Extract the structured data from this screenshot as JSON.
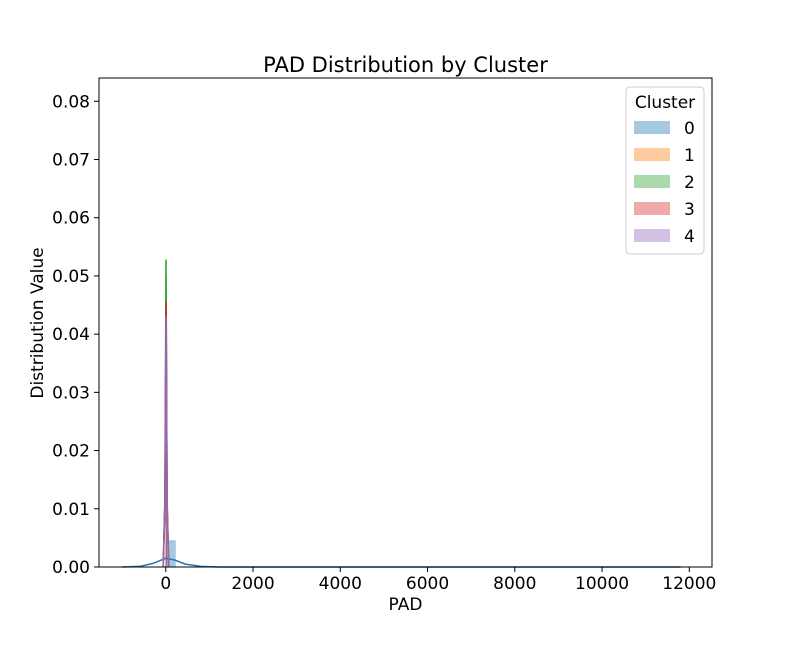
{
  "chart_data": {
    "type": "histogram",
    "title": "PAD Distribution by Cluster",
    "xlabel": "PAD",
    "ylabel": "Distribution Value",
    "xlim": [
      -1530,
      12520
    ],
    "ylim": [
      0.0,
      0.084
    ],
    "x_ticks": [
      0,
      2000,
      4000,
      6000,
      8000,
      10000,
      12000
    ],
    "x_tick_labels": [
      "0",
      "2000",
      "4000",
      "6000",
      "8000",
      "10000",
      "12000"
    ],
    "y_ticks": [
      0.0,
      0.01,
      0.02,
      0.03,
      0.04,
      0.05,
      0.06,
      0.07,
      0.08
    ],
    "y_tick_labels": [
      "0.00",
      "0.01",
      "0.02",
      "0.03",
      "0.04",
      "0.05",
      "0.06",
      "0.07",
      "0.08"
    ],
    "grid": false,
    "legend": {
      "title": "Cluster",
      "placement": "top-right",
      "entries": [
        "0",
        "1",
        "2",
        "3",
        "4"
      ]
    },
    "series": [
      {
        "name": "0",
        "color": "#1f77b4",
        "bars": [
          {
            "x0": 0,
            "x1": 230,
            "height": 0.0046
          }
        ],
        "kde": [
          [
            -1000,
            0.0
          ],
          [
            -600,
            0.0001
          ],
          [
            -300,
            0.0006
          ],
          [
            0,
            0.0015
          ],
          [
            200,
            0.0012
          ],
          [
            450,
            0.0005
          ],
          [
            800,
            0.0001
          ],
          [
            1200,
            0.0
          ],
          [
            11800,
            0.0
          ]
        ]
      },
      {
        "name": "1",
        "color": "#ff7f0e",
        "bars": [
          {
            "x0": -5,
            "x1": 20,
            "height": 0.04
          }
        ],
        "kde": [
          [
            -60,
            0.0
          ],
          [
            -20,
            0.01
          ],
          [
            8,
            0.043
          ],
          [
            30,
            0.01
          ],
          [
            70,
            0.0
          ]
        ]
      },
      {
        "name": "2",
        "color": "#2ca02c",
        "bars": [
          {
            "x0": -5,
            "x1": 20,
            "height": 0.05
          }
        ],
        "kde": [
          [
            -55,
            0.0
          ],
          [
            -20,
            0.012
          ],
          [
            6,
            0.0528
          ],
          [
            30,
            0.012
          ],
          [
            65,
            0.0
          ]
        ]
      },
      {
        "name": "3",
        "color": "#d62728",
        "bars": [
          {
            "x0": -5,
            "x1": 20,
            "height": 0.044
          }
        ],
        "kde": [
          [
            -60,
            0.0
          ],
          [
            -20,
            0.011
          ],
          [
            8,
            0.0456
          ],
          [
            32,
            0.011
          ],
          [
            70,
            0.0
          ]
        ]
      },
      {
        "name": "4",
        "color": "#9467bd",
        "bars": [
          {
            "x0": -5,
            "x1": 20,
            "height": 0.042
          }
        ],
        "kde": [
          [
            -60,
            0.0
          ],
          [
            -20,
            0.01
          ],
          [
            8,
            0.043
          ],
          [
            32,
            0.01
          ],
          [
            70,
            0.0
          ]
        ]
      }
    ]
  }
}
